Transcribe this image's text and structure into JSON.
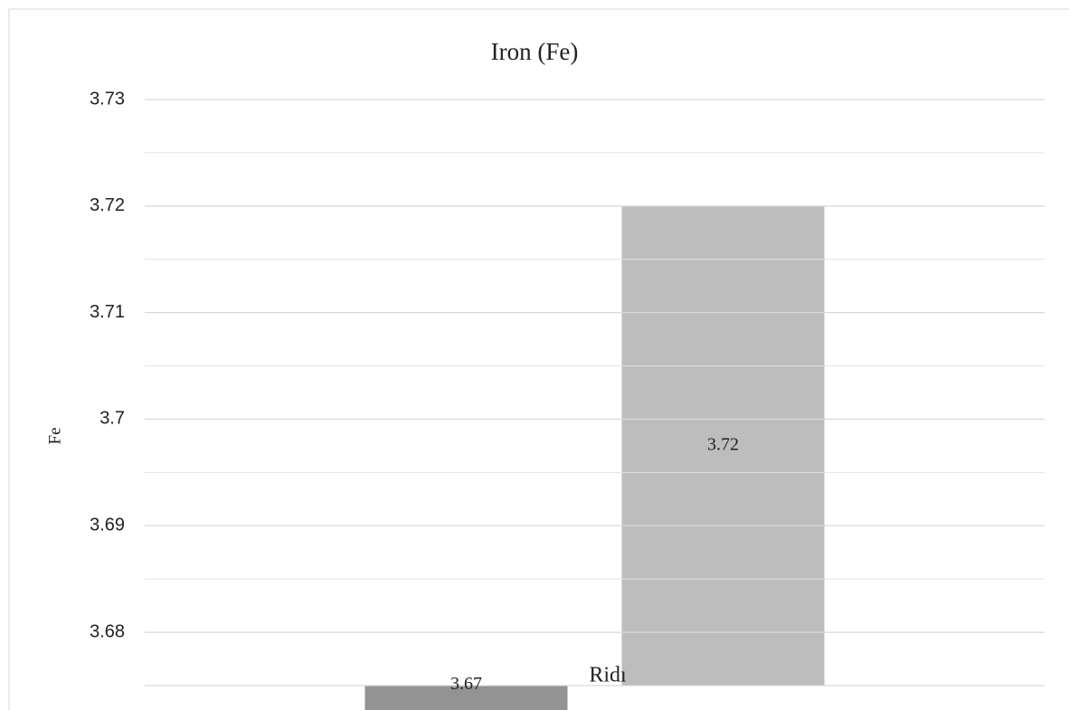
{
  "chart_data": {
    "type": "bar",
    "title": "Iron (Fe)",
    "y_label": "Fe",
    "x_label": "Ridı",
    "categories": [
      null,
      null
    ],
    "values": [
      3.67,
      3.72
    ],
    "colors": [
      "#939393",
      "#bdbdbd"
    ],
    "ylim": [
      3.675,
      3.73
    ],
    "yticks": [
      3.68,
      3.69,
      3.7,
      3.71,
      3.72,
      3.73
    ],
    "grid": true,
    "minor_grid": true
  }
}
